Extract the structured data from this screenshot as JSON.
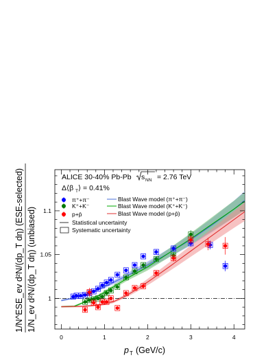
{
  "chart_data": {
    "type": "scatter",
    "header": {
      "line1_prefix": "ALICE 30-40% Pb-Pb",
      "line1_energy_prefix": "s",
      "line1_energy_sub": "NN",
      "line1_energy_value": "= 2.76 TeV",
      "line2_label": "Δ⟨β",
      "line2_sub": "T",
      "line2_value": "⟩ = 0.41%"
    },
    "xlabel_main": "p",
    "xlabel_sub": "T",
    "xlabel_unit": "(GeV/c)",
    "ylabel_top": "1/N^ESE_ev d²N/(dp_T dη) (ESE-selected)",
    "ylabel_bottom": "1/N_ev d²N/(dp_T dη) (unbiased)",
    "xlim": [
      -0.15,
      4.25
    ],
    "ylim": [
      0.965,
      1.147
    ],
    "x_ticks": [
      "0",
      "1",
      "2",
      "3",
      "4"
    ],
    "y_ticks": [
      "1",
      "1.05",
      "1.1"
    ],
    "reference_line": 1.0,
    "legend": {
      "pion": "π⁺+π⁻",
      "kaon": "K⁺+K⁻",
      "proton": "p+p̄",
      "bw_pion": "Blast Wave model (π⁺+π⁻)",
      "bw_kaon": "Blast Wave model (K⁺+K⁻)",
      "bw_proton": "Blast Wave model (p+p̄)",
      "stat": "Statistical uncertainty",
      "syst": "Systematic uncertainty"
    },
    "series": [
      {
        "name": "π⁺+π⁻",
        "color": "#0000ff",
        "x": [
          0.275,
          0.35,
          0.45,
          0.55,
          0.65,
          0.75,
          0.85,
          0.95,
          1.05,
          1.15,
          1.3,
          1.5,
          1.7,
          1.9,
          2.2,
          2.6,
          3.0,
          3.45,
          3.8
        ],
        "y": [
          1.002,
          1.003,
          1.003,
          1.004,
          1.006,
          1.008,
          1.011,
          1.015,
          1.018,
          1.021,
          1.027,
          1.032,
          1.038,
          1.048,
          1.053,
          1.057,
          1.063,
          1.061,
          1.037
        ],
        "stat_err": [
          0.002,
          0.002,
          0.002,
          0.002,
          0.002,
          0.002,
          0.002,
          0.002,
          0.002,
          0.002,
          0.002,
          0.002,
          0.002,
          0.002,
          0.003,
          0.003,
          0.004,
          0.005,
          0.006
        ],
        "syst_err": [
          0.003,
          0.003,
          0.003,
          0.003,
          0.003,
          0.003,
          0.003,
          0.003,
          0.003,
          0.003,
          0.003,
          0.003,
          0.003,
          0.003,
          0.003,
          0.003,
          0.003,
          0.003,
          0.003
        ]
      },
      {
        "name": "K⁺+K⁻",
        "color": "#007700",
        "x": [
          0.55,
          0.65,
          0.75,
          0.85,
          0.95,
          1.05,
          1.15,
          1.3,
          1.5,
          1.7,
          1.9,
          2.2,
          2.6,
          3.0
        ],
        "y": [
          0.996,
          0.998,
          0.999,
          1.0,
          1.002,
          1.006,
          1.009,
          1.013,
          1.024,
          1.031,
          1.038,
          1.045,
          1.049,
          1.073
        ],
        "stat_err": [
          0.002,
          0.002,
          0.002,
          0.002,
          0.002,
          0.002,
          0.002,
          0.002,
          0.002,
          0.002,
          0.003,
          0.003,
          0.004,
          0.005
        ],
        "syst_err": [
          0.003,
          0.003,
          0.003,
          0.003,
          0.003,
          0.003,
          0.003,
          0.003,
          0.003,
          0.003,
          0.003,
          0.003,
          0.003,
          0.003
        ]
      },
      {
        "name": "p+p̄",
        "color": "#ff0000",
        "x": [
          0.55,
          0.65,
          0.75,
          0.85,
          0.95,
          1.05,
          1.15,
          1.3,
          1.5,
          1.7,
          1.9,
          2.2,
          2.6,
          3.0,
          3.4,
          3.8
        ],
        "y": [
          0.987,
          1.007,
          0.995,
          0.99,
          0.996,
          0.996,
          1.0,
          0.989,
          1.006,
          1.012,
          1.014,
          1.029,
          1.046,
          1.067,
          1.062,
          1.06
        ],
        "stat_err": [
          0.003,
          0.005,
          0.003,
          0.002,
          0.002,
          0.002,
          0.002,
          0.002,
          0.002,
          0.002,
          0.003,
          0.003,
          0.004,
          0.005,
          0.007,
          0.01
        ],
        "syst_err": [
          0.003,
          0.003,
          0.003,
          0.003,
          0.003,
          0.003,
          0.003,
          0.003,
          0.003,
          0.003,
          0.003,
          0.003,
          0.003,
          0.003,
          0.003,
          0.003
        ]
      }
    ],
    "blast_wave": [
      {
        "name": "Blast Wave model (π⁺+π⁻)",
        "color": "#4a6fd8",
        "band_color": "#8090f0",
        "x": [
          0.0,
          0.3,
          0.6,
          0.9,
          1.2,
          1.6,
          2.0,
          2.5,
          3.0,
          3.5,
          4.0,
          4.25
        ],
        "y": [
          0.9975,
          1.0005,
          1.005,
          1.011,
          1.018,
          1.028,
          1.038,
          1.052,
          1.067,
          1.084,
          1.102,
          1.112
        ],
        "band": [
          0.001,
          0.001,
          0.001,
          0.0015,
          0.002,
          0.003,
          0.004,
          0.005,
          0.0065,
          0.008,
          0.0095,
          0.0105
        ]
      },
      {
        "name": "Blast Wave model (K⁺+K⁻)",
        "color": "#00aa00",
        "band_color": "#70c070",
        "x": [
          0.0,
          0.3,
          0.6,
          0.9,
          1.2,
          1.6,
          2.0,
          2.5,
          3.0,
          3.5,
          4.0,
          4.25
        ],
        "y": [
          0.9905,
          0.991,
          0.997,
          1.004,
          1.013,
          1.025,
          1.036,
          1.052,
          1.068,
          1.085,
          1.102,
          1.111
        ],
        "band": [
          0.001,
          0.001,
          0.001,
          0.0015,
          0.002,
          0.003,
          0.004,
          0.005,
          0.0065,
          0.008,
          0.0095,
          0.0105
        ]
      },
      {
        "name": "Blast Wave model (p+p̄)",
        "color": "#e03030",
        "band_color": "#f09090",
        "x": [
          0.0,
          0.5,
          0.9,
          1.2,
          1.5,
          1.8,
          2.1,
          2.5,
          3.0,
          3.5,
          4.0,
          4.25
        ],
        "y": [
          0.9905,
          0.991,
          0.9925,
          0.996,
          1.003,
          1.012,
          1.022,
          1.036,
          1.054,
          1.072,
          1.09,
          1.099
        ],
        "band": [
          0.001,
          0.001,
          0.0012,
          0.0015,
          0.002,
          0.003,
          0.004,
          0.005,
          0.0065,
          0.008,
          0.0095,
          0.0105
        ]
      }
    ]
  }
}
